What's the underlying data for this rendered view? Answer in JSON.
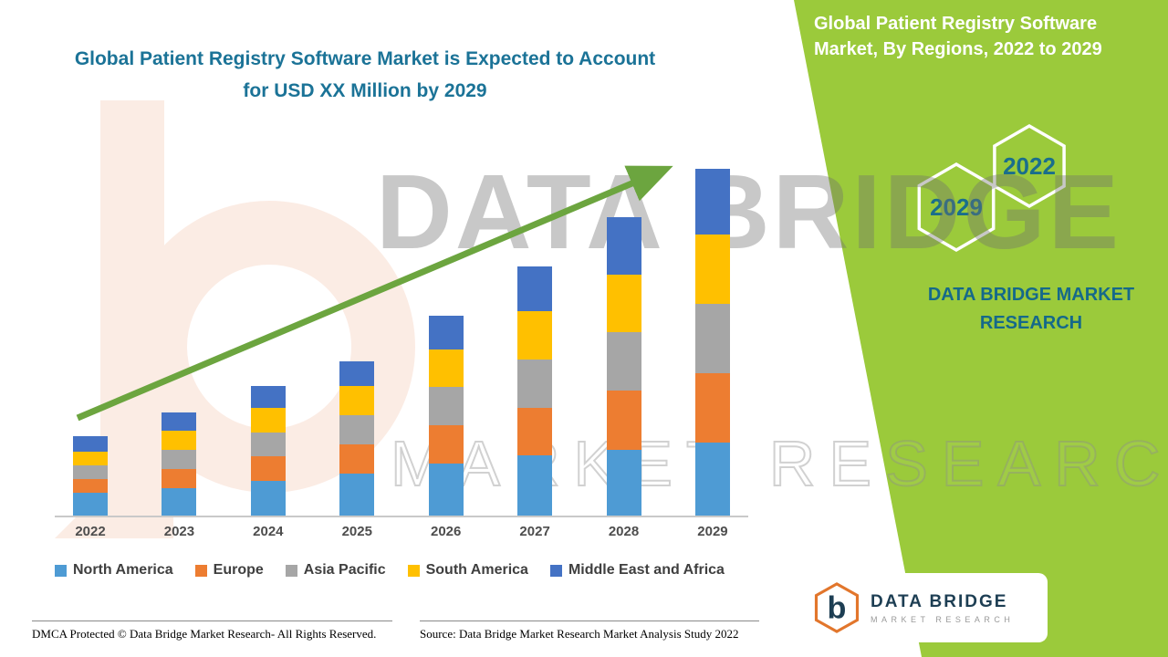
{
  "title": {
    "line1": "Global Patient Registry Software Market is Expected to Account",
    "line2": "for USD XX Million by 2029"
  },
  "panel": {
    "title": "Global Patient Registry Software Market, By Regions, 2022 to 2029",
    "color": "#9BCA3B",
    "hexagons": [
      {
        "label": "2029"
      },
      {
        "label": "2022"
      }
    ],
    "brand": {
      "line1": "DATA BRIDGE MARKET",
      "line2": "RESEARCH"
    }
  },
  "watermark": {
    "line1": "DATA BRIDGE",
    "line2": "MARKET RESEARCH"
  },
  "chart_data": {
    "type": "bar",
    "stacked": true,
    "title": "Global Patient Registry Software Market is Expected to Account for USD XX Million by 2029",
    "xlabel": "",
    "ylabel": "",
    "ylim": [
      0,
      105
    ],
    "grid": false,
    "legend_position": "bottom",
    "note": "No numeric axis is shown on the chart; segment values are relative estimates from bar heights (arbitrary units).",
    "categories": [
      "2022",
      "2023",
      "2024",
      "2025",
      "2026",
      "2027",
      "2028",
      "2029"
    ],
    "series": [
      {
        "name": "North America",
        "color": "#4E9BD4",
        "values": [
          6.5,
          8.0,
          10.0,
          12.0,
          15.0,
          17.5,
          19.0,
          21.0
        ]
      },
      {
        "name": "Europe",
        "color": "#ED7D31",
        "values": [
          4.0,
          5.5,
          7.0,
          8.5,
          11.0,
          13.5,
          17.0,
          20.0
        ]
      },
      {
        "name": "Asia Pacific",
        "color": "#A6A6A6",
        "values": [
          4.0,
          5.5,
          7.0,
          8.5,
          11.0,
          14.0,
          17.0,
          20.0
        ]
      },
      {
        "name": "South America",
        "color": "#FFC000",
        "values": [
          4.0,
          5.5,
          7.0,
          8.5,
          11.0,
          14.0,
          16.5,
          20.0
        ]
      },
      {
        "name": "Middle East and Africa",
        "color": "#4472C4",
        "values": [
          4.3,
          5.2,
          6.3,
          7.0,
          9.7,
          12.9,
          16.6,
          19.0
        ]
      }
    ],
    "trend_arrow": {
      "direction": "up",
      "color": "#6CA53F"
    }
  },
  "footer": {
    "dmca": "DMCA Protected © Data Bridge Market Research- All Rights Reserved.",
    "source": "Source: Data Bridge Market Research Market Analysis Study 2022"
  },
  "logo": {
    "title": "DATA BRIDGE",
    "subtitle": "MARKET RESEARCH"
  }
}
